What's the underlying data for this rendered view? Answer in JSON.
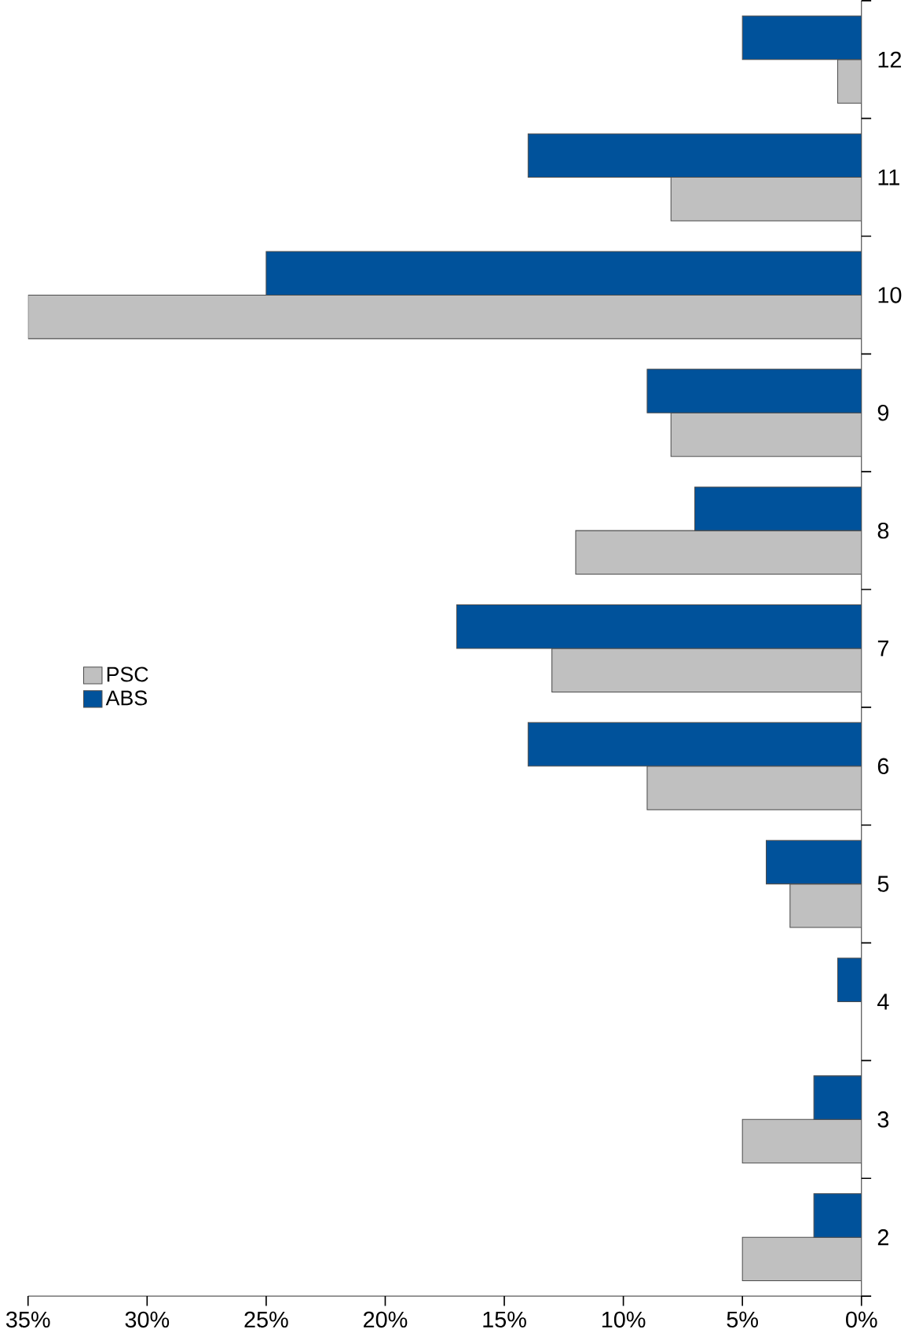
{
  "chart_data": {
    "type": "bar",
    "orientation": "horizontal",
    "categories": [
      "12",
      "11",
      "10",
      "9",
      "8",
      "7",
      "6",
      "5",
      "4",
      "3",
      "2"
    ],
    "series": [
      {
        "name": "PSC",
        "color": "#c0c0c0",
        "values": [
          1,
          8,
          35,
          8,
          12,
          13,
          9,
          3,
          null,
          5,
          5
        ]
      },
      {
        "name": "ABS",
        "color": "#00529b",
        "values": [
          5,
          14,
          25,
          9,
          7,
          17,
          14,
          4,
          1,
          2,
          2
        ]
      }
    ],
    "xlim": [
      35,
      0
    ],
    "xticks": [
      {
        "value": 35,
        "label": "35%"
      },
      {
        "value": 30,
        "label": "30%"
      },
      {
        "value": 25,
        "label": "25%"
      },
      {
        "value": 20,
        "label": "20%"
      },
      {
        "value": 15,
        "label": "15%"
      },
      {
        "value": 10,
        "label": "10%"
      },
      {
        "value": 5,
        "label": "5%"
      },
      {
        "value": 0,
        "label": "0%"
      }
    ],
    "legend": "left",
    "grid": false
  }
}
